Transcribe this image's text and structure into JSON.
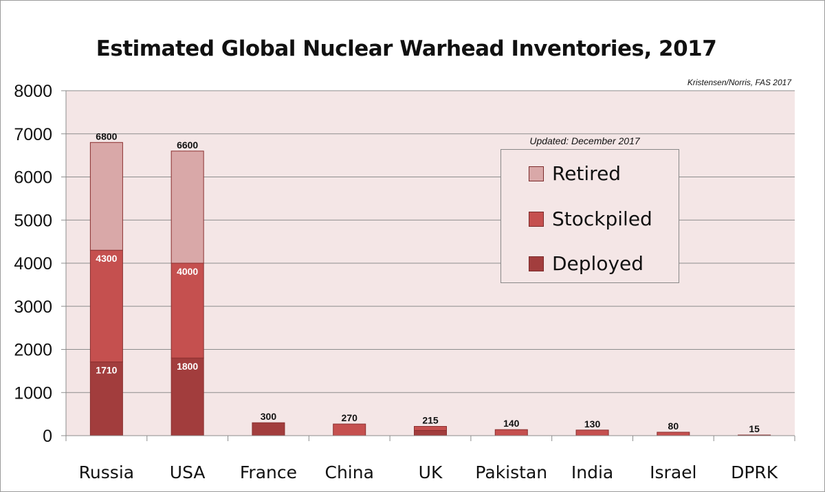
{
  "chart_data": {
    "type": "bar",
    "stacked": true,
    "title": "Estimated Global Nuclear Warhead Inventories, 2017",
    "source_note": "Kristensen/Norris, FAS 2017",
    "legend_note": "Updated: December 2017",
    "xlabel": "",
    "ylabel": "",
    "ylim": [
      0,
      8000
    ],
    "yticks": [
      0,
      1000,
      2000,
      3000,
      4000,
      5000,
      6000,
      7000,
      8000
    ],
    "grid": true,
    "legend_position": "right",
    "categories": [
      "Russia",
      "USA",
      "France",
      "China",
      "UK",
      "Pakistan",
      "India",
      "Israel",
      "DPRK"
    ],
    "series": [
      {
        "name": "Deployed",
        "color": "#a23d3d",
        "values": [
          1710,
          1800,
          300,
          0,
          120,
          0,
          0,
          0,
          0
        ]
      },
      {
        "name": "Stockpiled",
        "color": "#c5504f",
        "values": [
          2590,
          2200,
          0,
          270,
          95,
          140,
          130,
          80,
          15
        ]
      },
      {
        "name": "Retired",
        "color": "#d9a8a8",
        "values": [
          2500,
          2600,
          0,
          0,
          0,
          0,
          0,
          0,
          0
        ]
      }
    ],
    "total_labels": [
      "6800",
      "6600",
      "300",
      "270",
      "215",
      "140",
      "130",
      "80",
      "15"
    ],
    "inner_labels": [
      {
        "category": "Russia",
        "deployed": "1710",
        "stockpile_top": "4300"
      },
      {
        "category": "USA",
        "deployed": "1800",
        "stockpile_top": "4000"
      }
    ],
    "plot_background": "#f4e6e6"
  }
}
